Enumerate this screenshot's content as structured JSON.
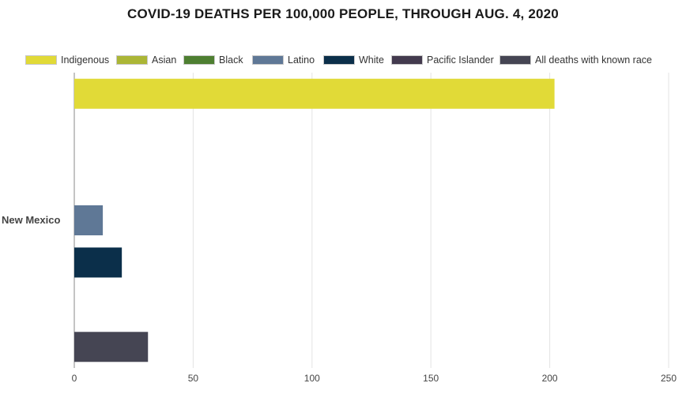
{
  "chart_data": {
    "type": "bar",
    "orientation": "horizontal",
    "title": "COVID-19 DEATHS PER 100,000 PEOPLE, THROUGH AUG. 4, 2020",
    "categories": [
      "New Mexico"
    ],
    "series": [
      {
        "name": "Indigenous",
        "values": [
          202
        ],
        "color": "#e1da37"
      },
      {
        "name": "Asian",
        "values": [
          null
        ],
        "color": "#abb636"
      },
      {
        "name": "Black",
        "values": [
          null
        ],
        "color": "#4e7f31"
      },
      {
        "name": "Latino",
        "values": [
          12
        ],
        "color": "#5f7896"
      },
      {
        "name": "White",
        "values": [
          20
        ],
        "color": "#0b2f4a"
      },
      {
        "name": "Pacific Islander",
        "values": [
          null
        ],
        "color": "#433a4e"
      },
      {
        "name": "All deaths with known race",
        "values": [
          31
        ],
        "color": "#454553"
      }
    ],
    "xlim": [
      0,
      250
    ],
    "xticks": [
      "0",
      "50",
      "100",
      "150",
      "200",
      "250"
    ],
    "grid": true,
    "legend_position": "top"
  }
}
